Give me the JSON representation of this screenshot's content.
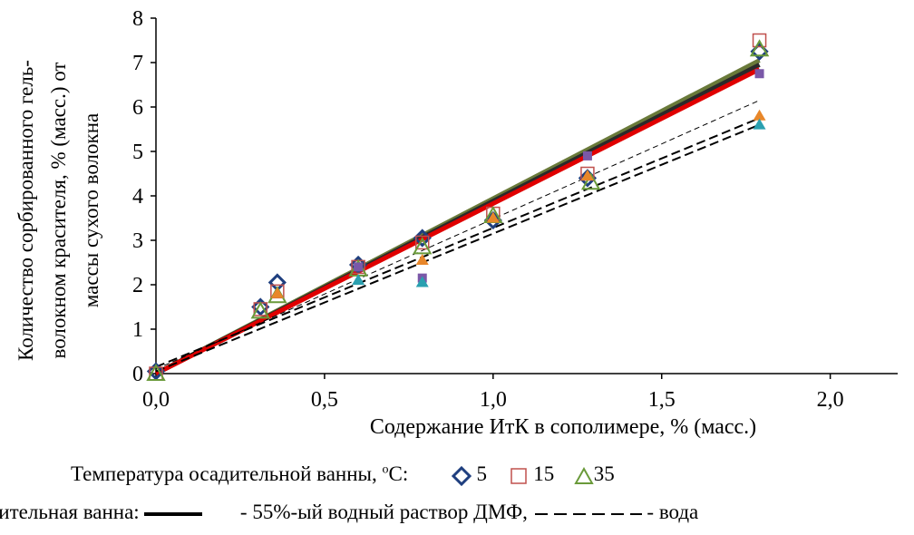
{
  "chart_data": {
    "type": "scatter",
    "title": "",
    "xlabel": "Содержание ИтК в сополимере, % (масс.)",
    "ylabel_lines": [
      "Количество сорбированного гель-",
      "волокном красителя, % (масс.) от",
      "массы сухого волокна"
    ],
    "xlim": [
      0,
      2.2
    ],
    "ylim": [
      0,
      8
    ],
    "xticks": [
      "0,0",
      "0,5",
      "1,0",
      "1,5",
      "2,0"
    ],
    "xtick_values": [
      0,
      0.5,
      1.0,
      1.5,
      2.0
    ],
    "yticks": [
      "0",
      "1",
      "2",
      "3",
      "4",
      "5",
      "6",
      "7",
      "8"
    ],
    "ytick_values": [
      0,
      1,
      2,
      3,
      4,
      5,
      6,
      7,
      8
    ],
    "grid": false,
    "series": [
      {
        "name": "5",
        "bath": "dmf",
        "marker": "diamond",
        "color": "#1f3f7f",
        "x": [
          0,
          0.31,
          0.36,
          0.6,
          0.79,
          1.0,
          1.28,
          1.79
        ],
        "y": [
          0.05,
          1.5,
          2.05,
          2.45,
          3.05,
          3.45,
          4.4,
          7.25
        ]
      },
      {
        "name": "15",
        "bath": "dmf",
        "marker": "square",
        "color": "#c0504d",
        "x": [
          0,
          0.31,
          0.36,
          0.6,
          0.79,
          1.0,
          1.28,
          1.79
        ],
        "y": [
          0.0,
          1.45,
          1.85,
          2.4,
          2.95,
          3.6,
          4.5,
          7.5
        ]
      },
      {
        "name": "35",
        "bath": "dmf",
        "marker": "triangle",
        "color": "#6a9a3a",
        "x": [
          0,
          0.31,
          0.36,
          0.6,
          0.79,
          1.0,
          1.29,
          1.79
        ],
        "y": [
          0.0,
          1.4,
          1.75,
          2.35,
          2.85,
          3.55,
          4.3,
          7.3
        ]
      },
      {
        "name": "5",
        "bath": "water",
        "marker": "square-filled",
        "color": "#7a58a8",
        "x": [
          0.6,
          0.79,
          1.28,
          1.79
        ],
        "y": [
          2.4,
          2.15,
          4.9,
          6.75
        ]
      },
      {
        "name": "15",
        "bath": "water",
        "marker": "triangle-filled",
        "color": "#e8872a",
        "x": [
          0.36,
          0.79,
          1.0,
          1.28,
          1.79
        ],
        "y": [
          1.8,
          2.55,
          3.5,
          4.45,
          5.8
        ]
      },
      {
        "name": "35",
        "bath": "water",
        "marker": "triangle-filled",
        "color": "#2aa0b0",
        "x": [
          0.6,
          0.79,
          1.79
        ],
        "y": [
          2.1,
          2.05,
          5.6
        ]
      }
    ],
    "trendlines": [
      {
        "style": "solid",
        "color": "#6a7a3a",
        "x": [
          0,
          1.79
        ],
        "y": [
          0,
          7.05
        ]
      },
      {
        "style": "solid",
        "color": "#2a2a2a",
        "x": [
          0,
          1.79
        ],
        "y": [
          0,
          6.95
        ]
      },
      {
        "style": "solid",
        "color": "#e00000",
        "x": [
          0,
          1.79
        ],
        "y": [
          0,
          6.85
        ]
      },
      {
        "style": "dashed",
        "color": "#000000",
        "x": [
          0,
          1.79
        ],
        "y": [
          0.15,
          5.75
        ]
      },
      {
        "style": "dashed",
        "color": "#000000",
        "x": [
          0,
          1.79
        ],
        "y": [
          0.05,
          5.6
        ]
      },
      {
        "style": "thin-dashed",
        "color": "#000000",
        "x": [
          0,
          1.79
        ],
        "y": [
          0.1,
          6.15
        ]
      }
    ]
  },
  "legend": {
    "temp_label": "Температура осадительной ванны,",
    "temp_unit_sup": "o",
    "temp_unit": "С:",
    "items": [
      {
        "label": "5",
        "marker": "diamond",
        "color": "#1f3f7f"
      },
      {
        "label": "15",
        "marker": "square",
        "color": "#c0504d"
      },
      {
        "label": "35",
        "marker": "triangle",
        "color": "#6a9a3a"
      }
    ],
    "bath_prefix": "цительная ванна:",
    "bath_solid_label": "- 55%-ый водный раствор ДМФ,",
    "bath_dashed_label": "- вода"
  }
}
